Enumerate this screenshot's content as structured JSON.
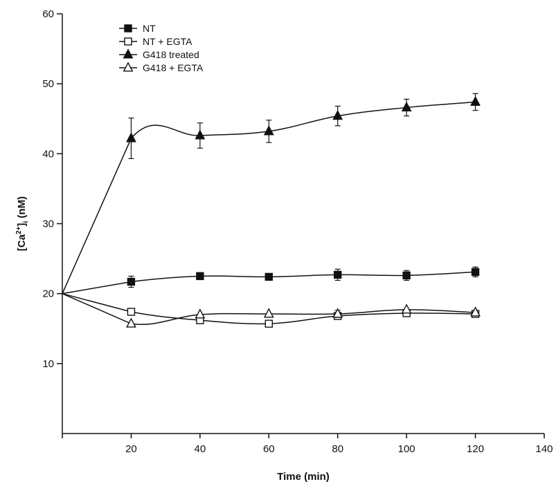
{
  "chart_data": {
    "type": "line",
    "title": "",
    "xlabel": "Time (min)",
    "ylabel_parts": [
      "[Ca",
      "2+",
      "]",
      "i",
      " (nM)"
    ],
    "xlim": [
      0,
      140
    ],
    "ylim": [
      0,
      60
    ],
    "x_ticks": [
      20,
      40,
      60,
      80,
      100,
      120,
      140
    ],
    "y_ticks": [
      10,
      20,
      30,
      40,
      50,
      60
    ],
    "grid": false,
    "legend_position": "top-left",
    "x": [
      0,
      20,
      40,
      60,
      80,
      100,
      120
    ],
    "series": [
      {
        "name": "NT",
        "marker": "square-filled",
        "values": [
          20,
          21.7,
          22.5,
          22.4,
          22.7,
          22.6,
          23.1
        ],
        "errors": [
          0,
          0.8,
          0.5,
          0.4,
          0.8,
          0.7,
          0.7
        ]
      },
      {
        "name": "NT + EGTA",
        "marker": "square-open",
        "values": [
          20,
          17.4,
          16.2,
          15.7,
          16.8,
          17.2,
          17.1
        ],
        "errors": [
          0,
          0,
          0,
          0,
          0,
          0,
          0
        ]
      },
      {
        "name": "G418 treated",
        "marker": "triangle-filled",
        "values": [
          20,
          42.2,
          42.6,
          43.2,
          45.4,
          46.6,
          47.4
        ],
        "errors": [
          0,
          2.9,
          1.8,
          1.6,
          1.4,
          1.2,
          1.2
        ]
      },
      {
        "name": "G418 + EGTA",
        "marker": "triangle-open",
        "values": [
          20,
          15.7,
          17.0,
          17.1,
          17.1,
          17.7,
          17.3
        ],
        "errors": [
          0,
          0,
          0,
          0,
          0.5,
          0,
          0
        ]
      }
    ],
    "colors": {
      "ink": "#111111",
      "background": "#ffffff"
    }
  }
}
